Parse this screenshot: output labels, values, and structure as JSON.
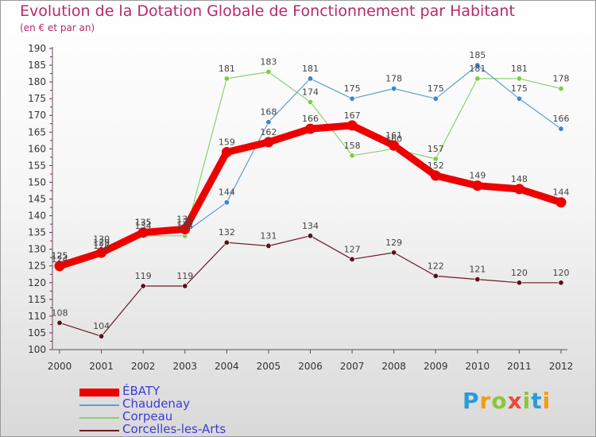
{
  "title": "Evolution de la Dotation Globale de Fonctionnement par Habitant",
  "subtitle": "(en € et par an)",
  "logo": {
    "text": "Proxiti",
    "letters": [
      {
        "ch": "P",
        "color": "#2a9bd8"
      },
      {
        "ch": "r",
        "color": "#f39c12"
      },
      {
        "ch": "o",
        "color": "#8cc63f"
      },
      {
        "ch": "x",
        "color": "#e74c3c"
      },
      {
        "ch": "i",
        "color": "#8cc63f"
      },
      {
        "ch": "t",
        "color": "#2a9bd8"
      },
      {
        "ch": "i",
        "color": "#f39c12"
      }
    ]
  },
  "chart_data": {
    "type": "line",
    "title": "Evolution de la Dotation Globale de Fonctionnement par Habitant",
    "subtitle": "(en € et par an)",
    "x": [
      "2000",
      "2001",
      "2002",
      "2003",
      "2004",
      "2005",
      "2006",
      "2007",
      "2008",
      "2009",
      "2010",
      "2011",
      "2012"
    ],
    "ylim": [
      100,
      190
    ],
    "yticks": [
      100,
      105,
      110,
      115,
      120,
      125,
      130,
      135,
      140,
      145,
      150,
      155,
      160,
      165,
      170,
      175,
      180,
      185,
      190
    ],
    "grid": false,
    "legend_position": "bottom-left",
    "series": [
      {
        "name": "Corcelles-les-Arts",
        "color": "#6b1a22",
        "dot": "#5a1118",
        "width": 1.2,
        "values": [
          108,
          104,
          119,
          119,
          132,
          131,
          134,
          127,
          129,
          122,
          121,
          120,
          120
        ],
        "labels": [
          "108",
          "104",
          "119",
          "119",
          "132",
          "131",
          "134",
          "127",
          "129",
          "122",
          "121",
          "120",
          "120"
        ]
      },
      {
        "name": "Corpeau",
        "color": "#8fd16a",
        "dot": "#7ccf3f",
        "width": 1.2,
        "values": [
          124,
          128,
          134,
          134,
          181,
          183,
          174,
          158,
          160,
          157,
          181,
          181,
          178
        ],
        "labels": [
          "124",
          "128",
          "134",
          "134",
          "181",
          "183",
          "174",
          "158",
          "160",
          "157",
          "181",
          "181",
          "178"
        ]
      },
      {
        "name": "Chaudenay",
        "color": "#5c9fd6",
        "dot": "#3d86c8",
        "width": 1.2,
        "values": [
          125,
          130,
          135,
          135,
          144,
          168,
          181,
          175,
          178,
          175,
          185,
          175,
          166
        ],
        "labels": [
          "125",
          "130",
          "135",
          "135",
          "144",
          "168",
          "181",
          "175",
          "178",
          "175",
          "185",
          "175",
          "166"
        ]
      },
      {
        "name": "ÉBATY",
        "color": "#ee0000",
        "dot": "#ee0000",
        "width": 9,
        "values": [
          125,
          129,
          135,
          136,
          159,
          162,
          166,
          167,
          161,
          152,
          149,
          148,
          144
        ],
        "labels": [
          "125",
          "129",
          "135",
          "136",
          "159",
          "162",
          "166",
          "167",
          "161",
          "152",
          "149",
          "148",
          "144"
        ]
      }
    ]
  }
}
